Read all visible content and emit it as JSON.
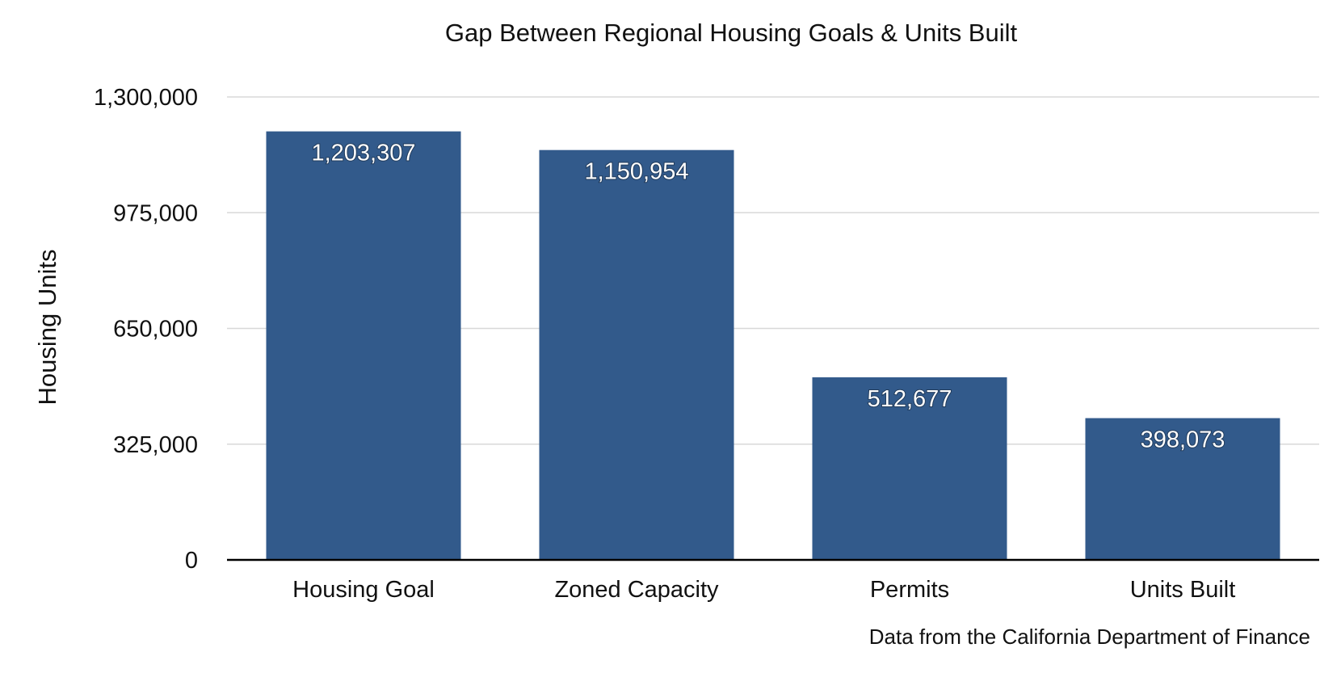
{
  "chart_data": {
    "type": "bar",
    "title": "Gap Between Regional Housing Goals & Units Built",
    "xlabel": "",
    "ylabel": "Housing Units",
    "categories": [
      "Housing Goal",
      "Zoned Capacity",
      "Permits",
      "Units Built"
    ],
    "values": [
      1203307,
      1150954,
      512677,
      398073
    ],
    "data_labels": [
      "1,203,307",
      "1,150,954",
      "512,677",
      "398,073"
    ],
    "ylim": [
      0,
      1300000
    ],
    "y_ticks": [
      0,
      325000,
      650000,
      975000,
      1300000
    ],
    "y_tick_labels": [
      "0",
      "325,000",
      "650,000",
      "975,000",
      "1,300,000"
    ],
    "grid": true,
    "legend": "none",
    "bar_color": "#325a8b"
  },
  "source_note": "Data from the California Department of Finance"
}
